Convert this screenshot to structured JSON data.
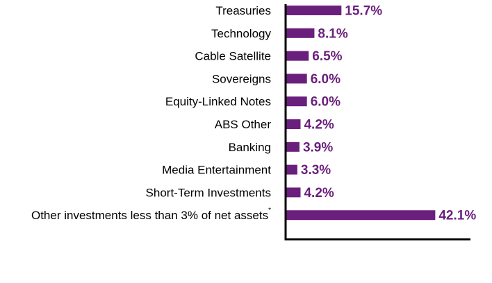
{
  "chart_data": {
    "type": "bar",
    "orientation": "horizontal",
    "title": "",
    "xlabel": "",
    "ylabel": "",
    "categories": [
      "Treasuries",
      "Technology",
      "Cable Satellite",
      "Sovereigns",
      "Equity-Linked Notes",
      "ABS Other",
      "Banking",
      "Media Entertainment",
      "Short-Term Investments",
      "Other investments less than 3% of net assets"
    ],
    "category_superscripts": [
      "",
      "",
      "",
      "",
      "",
      "",
      "",
      "",
      "",
      "*"
    ],
    "values": [
      15.7,
      8.1,
      6.5,
      6.0,
      6.0,
      4.2,
      3.9,
      3.3,
      4.2,
      42.1
    ],
    "value_labels": [
      "15.7%",
      "8.1%",
      "6.5%",
      "6.0%",
      "6.0%",
      "4.2%",
      "3.9%",
      "3.3%",
      "4.2%",
      "42.1%"
    ],
    "xlim": [
      0,
      52
    ],
    "grid": false,
    "legend": "none",
    "bar_color": "#6b1f7c",
    "label_color": "#6b1f7c",
    "axis_color": "#000000"
  }
}
